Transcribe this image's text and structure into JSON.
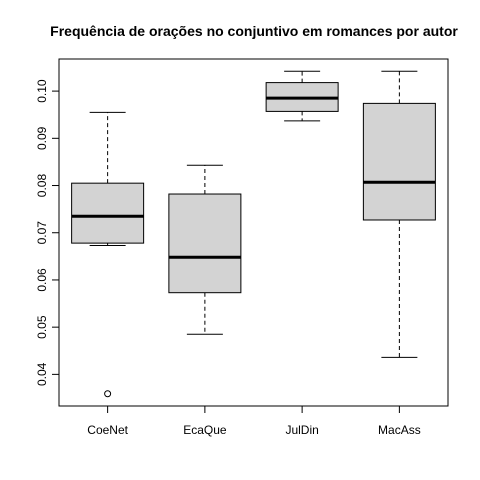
{
  "chart_data": {
    "type": "boxplot",
    "title": "Frequência de orações no conjuntivo em romances por autor",
    "xlabel": "",
    "ylabel": "",
    "categories": [
      "CoeNet",
      "EcaQue",
      "JulDin",
      "MacAss"
    ],
    "boxes": [
      {
        "category": "CoeNet",
        "whisker_low": 0.0673,
        "q1": 0.0678,
        "median": 0.0735,
        "q3": 0.0805,
        "whisker_high": 0.0955,
        "outliers": [
          0.0359
        ]
      },
      {
        "category": "EcaQue",
        "whisker_low": 0.0485,
        "q1": 0.0573,
        "median": 0.0648,
        "q3": 0.0782,
        "whisker_high": 0.0843,
        "outliers": []
      },
      {
        "category": "JulDin",
        "whisker_low": 0.0937,
        "q1": 0.0957,
        "median": 0.0985,
        "q3": 0.1018,
        "whisker_high": 0.1042,
        "outliers": []
      },
      {
        "category": "MacAss",
        "whisker_low": 0.0436,
        "q1": 0.0727,
        "median": 0.0807,
        "q3": 0.0974,
        "whisker_high": 0.1042,
        "outliers": []
      }
    ],
    "y_ticks": [
      "0.04",
      "0.05",
      "0.06",
      "0.07",
      "0.08",
      "0.09",
      "0.10"
    ],
    "ylim": [
      0.0333,
      0.1068
    ],
    "grid": false,
    "colors": {
      "box_fill": "#d3d3d3",
      "line": "#000000"
    }
  }
}
